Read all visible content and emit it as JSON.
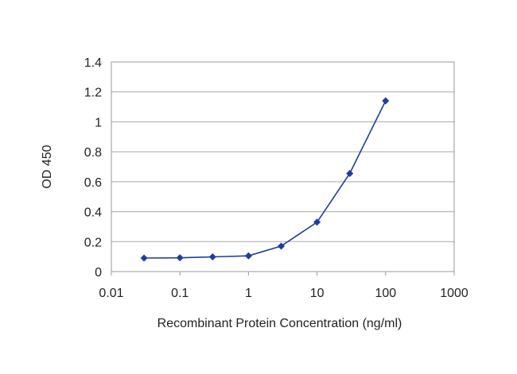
{
  "chart_data": {
    "type": "line",
    "title": "",
    "xlabel": "Recombinant Protein Concentration (ng/ml)",
    "ylabel": "OD 450",
    "xscale": "log",
    "xlim": [
      0.01,
      1000
    ],
    "ylim": [
      0,
      1.4
    ],
    "xticks": [
      0.01,
      0.1,
      1,
      10,
      100,
      1000
    ],
    "xtick_labels": [
      "0.01",
      "0.1",
      "1",
      "10",
      "100",
      "1000"
    ],
    "yticks": [
      0,
      0.2,
      0.4,
      0.6,
      0.8,
      1,
      1.2,
      1.4
    ],
    "ytick_labels": [
      "0",
      "0.2",
      "0.4",
      "0.6",
      "0.8",
      "1",
      "1.2",
      "1.4"
    ],
    "grid": "horizontal",
    "legend": "none",
    "series": [
      {
        "x": [
          0.03,
          0.1,
          0.3,
          1,
          3,
          10,
          30,
          100
        ],
        "y": [
          0.09,
          0.092,
          0.098,
          0.105,
          0.17,
          0.33,
          0.655,
          1.14
        ],
        "color": "#1f3d9b"
      }
    ]
  }
}
